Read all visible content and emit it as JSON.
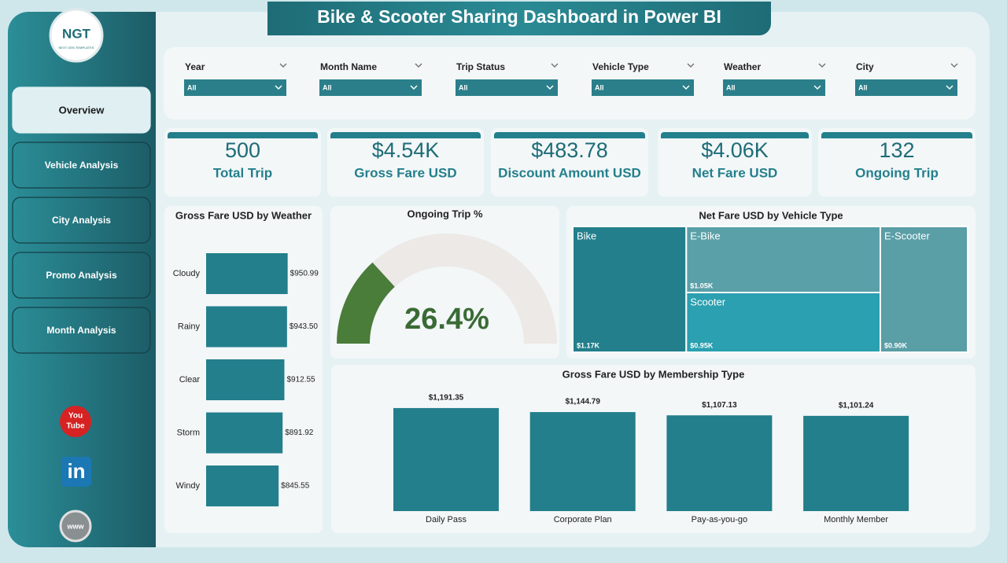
{
  "header": {
    "title": "Bike & Scooter Sharing Dashboard in Power BI"
  },
  "logo": {
    "text": "NGT",
    "subtext": "NEXT GEN TEMPLATES"
  },
  "nav": [
    "Overview",
    "Vehicle Analysis",
    "City Analysis",
    "Promo Analysis",
    "Month Analysis"
  ],
  "social": {
    "youtube": [
      "You",
      "Tube"
    ],
    "linkedin": "in",
    "web": "www"
  },
  "filters": [
    {
      "label": "Year",
      "value": "All"
    },
    {
      "label": "Month Name",
      "value": "All"
    },
    {
      "label": "Trip Status",
      "value": "All"
    },
    {
      "label": "Vehicle Type",
      "value": "All"
    },
    {
      "label": "Weather",
      "value": "All"
    },
    {
      "label": "City",
      "value": "All"
    }
  ],
  "kpis": [
    {
      "value": 500,
      "label": "Total Trip"
    },
    {
      "value": "$4.54K",
      "label": "Gross Fare USD"
    },
    {
      "value": "$483.78",
      "label": "Discount Amount USD"
    },
    {
      "value": "$4.06K",
      "label": "Net Fare USD"
    },
    {
      "value": 132,
      "label": "Ongoing Trip"
    }
  ],
  "chart_data": [
    {
      "type": "barh",
      "title": "Gross Fare USD by Weather",
      "categories": [
        "Cloudy",
        "Rainy",
        "Clear",
        "Storm",
        "Windy"
      ],
      "values": [
        950.99,
        943.5,
        912.55,
        891.92,
        845.55
      ],
      "value_labels": [
        "$950.99",
        "$943.50",
        "$912.55",
        "$891.92",
        "$845.55"
      ],
      "xlim": [
        0,
        1000
      ],
      "color": "#237f8c"
    },
    {
      "type": "gauge",
      "title": "Ongoing Trip %",
      "value": 26.4,
      "value_label": "26.4%",
      "ylim": [
        0,
        100
      ],
      "color": "#4a7c3a",
      "track_color": "#ece9e6"
    },
    {
      "type": "treemap",
      "title": "Net Fare USD by Vehicle Type",
      "categories": [
        "Bike",
        "E-Bike",
        "Scooter",
        "E-Scooter"
      ],
      "values": [
        1170,
        1050,
        950,
        900
      ],
      "value_labels": [
        "$1.17K",
        "$1.05K",
        "$0.95K",
        "$0.90K"
      ],
      "colors": [
        "#237f8c",
        "#5aa0a8",
        "#2aa0b0",
        "#5a9ea6"
      ]
    },
    {
      "type": "bar",
      "title": "Gross Fare USD by Membership Type",
      "categories": [
        "Daily Pass",
        "Corporate Plan",
        "Pay-as-you-go",
        "Monthly Member"
      ],
      "values": [
        1191.35,
        1144.79,
        1107.13,
        1101.24
      ],
      "value_labels": [
        "$1,191.35",
        "$1,144.79",
        "$1,107.13",
        "$1,101.24"
      ],
      "ylim": [
        0,
        1200
      ],
      "color": "#237f8c"
    }
  ]
}
